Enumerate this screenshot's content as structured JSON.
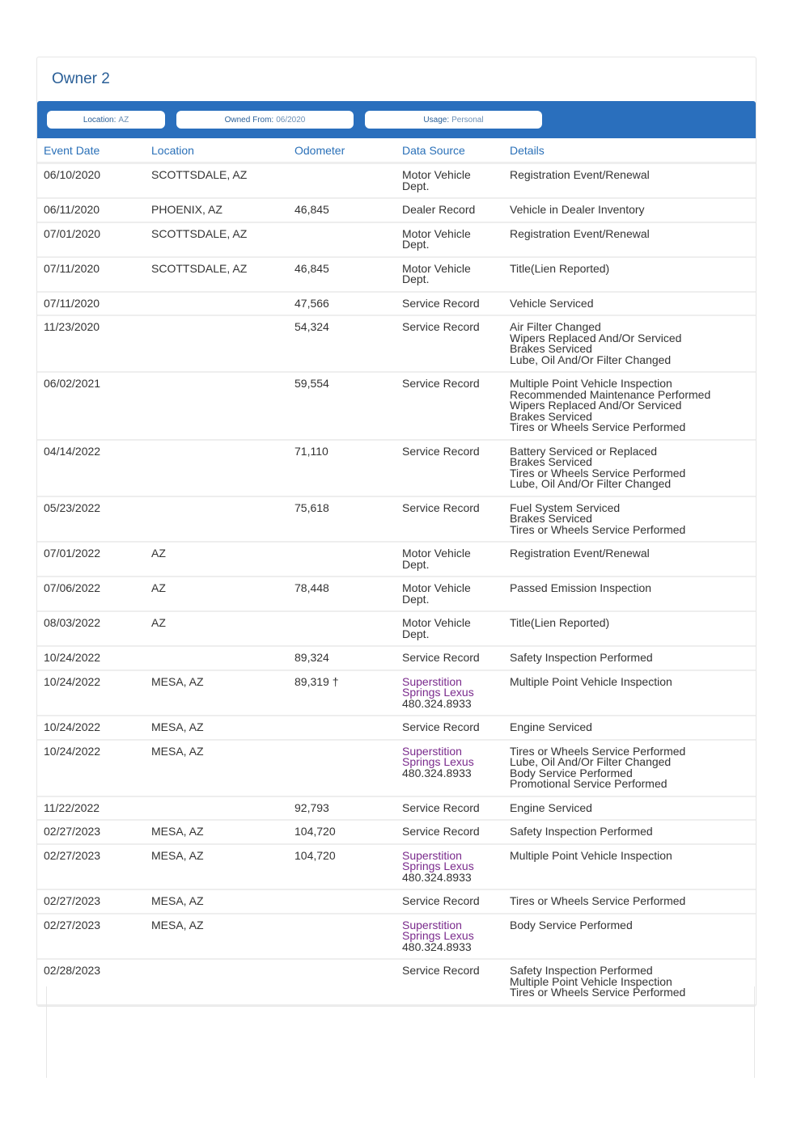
{
  "owner": {
    "title": "Owner 2"
  },
  "summary": [
    {
      "label": "Location:",
      "value": "AZ"
    },
    {
      "label": "Owned From:",
      "value": "06/2020"
    },
    {
      "label": "Usage:",
      "value": "Personal"
    }
  ],
  "columns": [
    "Event Date",
    "Location",
    "Odometer",
    "Data Source",
    "Details"
  ],
  "rows": [
    {
      "date": "06/10/2020",
      "location": "SCOTTSDALE, AZ",
      "odometer": "",
      "source": [
        "Motor Vehicle",
        "Dept."
      ],
      "details": [
        "Registration Event/Renewal"
      ]
    },
    {
      "date": "06/11/2020",
      "location": "PHOENIX, AZ",
      "odometer": "46,845",
      "source": [
        "Dealer Record"
      ],
      "details": [
        "Vehicle in Dealer Inventory"
      ]
    },
    {
      "date": "07/01/2020",
      "location": "SCOTTSDALE, AZ",
      "odometer": "",
      "source": [
        "Motor Vehicle",
        "Dept."
      ],
      "details": [
        "Registration Event/Renewal"
      ]
    },
    {
      "date": "07/11/2020",
      "location": "SCOTTSDALE, AZ",
      "odometer": "46,845",
      "source": [
        "Motor Vehicle",
        "Dept."
      ],
      "details": [
        "Title(Lien Reported)"
      ]
    },
    {
      "date": "07/11/2020",
      "location": "",
      "odometer": "47,566",
      "source": [
        "Service Record"
      ],
      "details": [
        "Vehicle Serviced"
      ]
    },
    {
      "date": "11/23/2020",
      "location": "",
      "odometer": "54,324",
      "source": [
        "Service Record"
      ],
      "details": [
        "Air Filter Changed",
        "Wipers Replaced And/Or Serviced",
        "Brakes Serviced",
        "Lube, Oil And/Or Filter Changed"
      ]
    },
    {
      "date": "06/02/2021",
      "location": "",
      "odometer": "59,554",
      "source": [
        "Service Record"
      ],
      "details": [
        "Multiple Point Vehicle Inspection",
        "Recommended Maintenance Performed",
        "Wipers Replaced And/Or Serviced",
        "Brakes Serviced",
        "Tires or Wheels Service Performed"
      ]
    },
    {
      "date": "04/14/2022",
      "location": "",
      "odometer": "71,110",
      "source": [
        "Service Record"
      ],
      "details": [
        "Battery Serviced or Replaced",
        "Brakes Serviced",
        "Tires or Wheels Service Performed",
        "Lube, Oil And/Or Filter Changed"
      ]
    },
    {
      "date": "05/23/2022",
      "location": "",
      "odometer": "75,618",
      "source": [
        "Service Record"
      ],
      "details": [
        "Fuel System Serviced",
        "Brakes Serviced",
        "Tires or Wheels Service Performed"
      ]
    },
    {
      "date": "07/01/2022",
      "location": "AZ",
      "odometer": "",
      "source": [
        "Motor Vehicle",
        "Dept."
      ],
      "details": [
        "Registration Event/Renewal"
      ]
    },
    {
      "date": "07/06/2022",
      "location": "AZ",
      "odometer": "78,448",
      "source": [
        "Motor Vehicle",
        "Dept."
      ],
      "details": [
        "Passed Emission Inspection"
      ]
    },
    {
      "date": "08/03/2022",
      "location": "AZ",
      "odometer": "",
      "source": [
        "Motor Vehicle",
        "Dept."
      ],
      "details": [
        "Title(Lien Reported)"
      ]
    },
    {
      "date": "10/24/2022",
      "location": "",
      "odometer": "89,324",
      "source": [
        "Service Record"
      ],
      "details": [
        "Safety Inspection Performed"
      ]
    },
    {
      "date": "10/24/2022",
      "location": "MESA, AZ",
      "odometer": "89,319 †",
      "dealer": [
        "Superstition",
        "Springs Lexus"
      ],
      "source": [
        "480.324.8933"
      ],
      "details": [
        "Multiple Point Vehicle Inspection"
      ]
    },
    {
      "date": "10/24/2022",
      "location": "MESA, AZ",
      "odometer": "",
      "source": [
        "Service Record"
      ],
      "details": [
        "Engine Serviced"
      ]
    },
    {
      "date": "10/24/2022",
      "location": "MESA, AZ",
      "odometer": "",
      "dealer": [
        "Superstition",
        "Springs Lexus"
      ],
      "source": [
        "480.324.8933"
      ],
      "details": [
        "Tires or Wheels Service Performed",
        "Lube, Oil And/Or Filter Changed",
        "Body Service Performed",
        "Promotional Service Performed"
      ]
    },
    {
      "date": "11/22/2022",
      "location": "",
      "odometer": "92,793",
      "source": [
        "Service Record"
      ],
      "details": [
        "Engine Serviced"
      ]
    },
    {
      "date": "02/27/2023",
      "location": "MESA, AZ",
      "odometer": "104,720",
      "source": [
        "Service Record"
      ],
      "details": [
        "Safety Inspection Performed"
      ]
    },
    {
      "date": "02/27/2023",
      "location": "MESA, AZ",
      "odometer": "104,720",
      "dealer": [
        "Superstition",
        "Springs Lexus"
      ],
      "source": [
        "480.324.8933"
      ],
      "details": [
        "Multiple Point Vehicle Inspection"
      ]
    },
    {
      "date": "02/27/2023",
      "location": "MESA, AZ",
      "odometer": "",
      "source": [
        "Service Record"
      ],
      "details": [
        "Tires or Wheels Service Performed"
      ]
    },
    {
      "date": "02/27/2023",
      "location": "MESA, AZ",
      "odometer": "",
      "dealer": [
        "Superstition",
        "Springs Lexus"
      ],
      "source": [
        "480.324.8933"
      ],
      "details": [
        "Body Service Performed"
      ]
    },
    {
      "date": "02/28/2023",
      "location": "",
      "odometer": "",
      "source": [
        "Service Record"
      ],
      "details": [
        "Safety Inspection Performed",
        "Multiple Point Vehicle Inspection",
        "Tires or Wheels Service Performed"
      ]
    }
  ],
  "colors": {
    "accent": "#2a6fbd",
    "header_text": "#2a70b8",
    "dealer_link": "#7a2a8c"
  }
}
